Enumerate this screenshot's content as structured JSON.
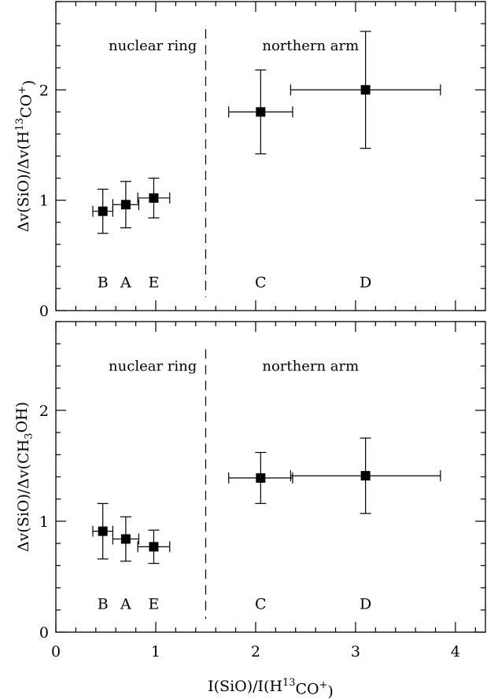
{
  "chart_data": [
    {
      "type": "scatter",
      "ylabel": "Δv(SiO)/Δv(H13CO+)",
      "ylabel_parts": [
        {
          "t": "Δv(SiO)/Δv(H"
        },
        {
          "t": "13",
          "sup": true
        },
        {
          "t": "CO"
        },
        {
          "t": "+",
          "sup": true
        },
        {
          "t": ")"
        }
      ],
      "xlim": [
        0,
        4.3
      ],
      "ylim": [
        0,
        2.8
      ],
      "yticks_major": [
        0,
        1,
        2
      ],
      "xticks_major": [
        0,
        1,
        2,
        3,
        4
      ],
      "xticklabels_shown": false,
      "divider_x": 1.5,
      "regions": [
        {
          "label": "nuclear ring",
          "x": 0.97,
          "y": 2.4
        },
        {
          "label": "northern arm",
          "x": 2.55,
          "y": 2.4
        }
      ],
      "points": [
        {
          "label": "B",
          "x": 0.47,
          "y": 0.9,
          "xerr": 0.1,
          "yerr": 0.2
        },
        {
          "label": "A",
          "x": 0.7,
          "y": 0.96,
          "xerr": 0.13,
          "yerr": 0.21
        },
        {
          "label": "E",
          "x": 0.98,
          "y": 1.02,
          "xerr": 0.16,
          "yerr": 0.18
        },
        {
          "label": "C",
          "x": 2.05,
          "y": 1.8,
          "xerr": 0.32,
          "yerr": 0.38
        },
        {
          "label": "D",
          "x": 3.1,
          "y": 2.0,
          "xerr": 0.75,
          "yerr": 0.53
        }
      ],
      "point_label_y": 0.26
    },
    {
      "type": "scatter",
      "ylabel": "Δv(SiO)/Δv(CH3OH)",
      "ylabel_parts": [
        {
          "t": "Δv(SiO)/Δv(CH"
        },
        {
          "t": "3",
          "sub": true
        },
        {
          "t": "OH)"
        }
      ],
      "xlabel": "I(SiO)/I(H13CO+)",
      "xlabel_parts": [
        {
          "t": "I(SiO)/I(H"
        },
        {
          "t": "13",
          "sup": true
        },
        {
          "t": "CO"
        },
        {
          "t": "+",
          "sup": true
        },
        {
          "t": ")"
        }
      ],
      "xlim": [
        0,
        4.3
      ],
      "ylim": [
        0,
        2.8
      ],
      "yticks_major": [
        0,
        1,
        2
      ],
      "xticks_major": [
        0,
        1,
        2,
        3,
        4
      ],
      "xticklabels_shown": true,
      "divider_x": 1.5,
      "regions": [
        {
          "label": "nuclear ring",
          "x": 0.97,
          "y": 2.4
        },
        {
          "label": "northern arm",
          "x": 2.55,
          "y": 2.4
        }
      ],
      "points": [
        {
          "label": "B",
          "x": 0.47,
          "y": 0.91,
          "xerr": 0.1,
          "yerr": 0.25
        },
        {
          "label": "A",
          "x": 0.7,
          "y": 0.84,
          "xerr": 0.13,
          "yerr": 0.2
        },
        {
          "label": "E",
          "x": 0.98,
          "y": 0.77,
          "xerr": 0.16,
          "yerr": 0.15
        },
        {
          "label": "C",
          "x": 2.05,
          "y": 1.39,
          "xerr": 0.32,
          "yerr": 0.23
        },
        {
          "label": "D",
          "x": 3.1,
          "y": 1.41,
          "xerr": 0.75,
          "yerr": 0.34
        }
      ],
      "point_label_y": 0.26
    }
  ]
}
